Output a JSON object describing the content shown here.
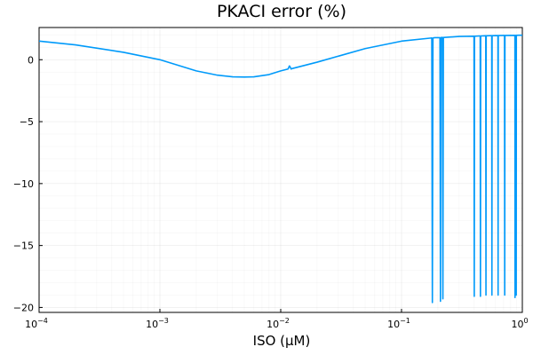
{
  "chart_data": {
    "type": "line",
    "title": "PKACI error (%)",
    "xlabel": "ISO (μM)",
    "ylabel": "",
    "xscale": "log",
    "xlim": [
      0.0001,
      1
    ],
    "ylim": [
      -20.4,
      2.6
    ],
    "grid": true,
    "legend": "none",
    "x_ticks": [
      {
        "base": "10",
        "exp": "−4",
        "value": 0.0001
      },
      {
        "base": "10",
        "exp": "−3",
        "value": 0.001
      },
      {
        "base": "10",
        "exp": "−2",
        "value": 0.01
      },
      {
        "base": "10",
        "exp": "−1",
        "value": 0.1
      },
      {
        "base": "10",
        "exp": "0",
        "value": 1
      }
    ],
    "y_ticks": [
      {
        "label": "0",
        "value": 0
      },
      {
        "label": "−5",
        "value": -5
      },
      {
        "label": "−10",
        "value": -10
      },
      {
        "label": "−15",
        "value": -15
      },
      {
        "label": "−20",
        "value": -20
      }
    ],
    "series": [
      {
        "color": "#009AFA",
        "x": [
          0.0001,
          0.0002,
          0.0005,
          0.001,
          0.002,
          0.003,
          0.004,
          0.005,
          0.006,
          0.008,
          0.01,
          0.0115,
          0.0118,
          0.012,
          0.0122,
          0.0126,
          0.02,
          0.05,
          0.1,
          0.175,
          0.178,
          0.18,
          0.182,
          0.185,
          0.19,
          0.195,
          0.2,
          0.205,
          0.208,
          0.21,
          0.212,
          0.215,
          0.218,
          0.22,
          0.222,
          0.225,
          0.3,
          0.395,
          0.398,
          0.4,
          0.402,
          0.405,
          0.44,
          0.445,
          0.448,
          0.45,
          0.452,
          0.455,
          0.495,
          0.498,
          0.5,
          0.502,
          0.505,
          0.55,
          0.555,
          0.558,
          0.56,
          0.562,
          0.565,
          0.62,
          0.625,
          0.628,
          0.63,
          0.632,
          0.635,
          0.7,
          0.708,
          0.712,
          0.715,
          0.718,
          0.722,
          0.86,
          0.865,
          0.868,
          0.87,
          0.872,
          0.875,
          0.88,
          0.885,
          0.888,
          0.89,
          0.892,
          0.895,
          0.93,
          0.95,
          1.0
        ],
        "y": [
          1.5,
          1.2,
          0.6,
          0.0,
          -0.9,
          -1.25,
          -1.38,
          -1.4,
          -1.38,
          -1.2,
          -0.9,
          -0.75,
          -0.5,
          -0.6,
          -0.75,
          -0.7,
          -0.2,
          0.9,
          1.5,
          1.75,
          1.75,
          -19.6,
          1.75,
          1.77,
          1.78,
          1.78,
          1.78,
          1.78,
          1.78,
          -19.5,
          1.78,
          1.8,
          1.8,
          -19.3,
          1.8,
          1.8,
          1.88,
          1.9,
          1.9,
          -19.1,
          1.9,
          1.9,
          1.92,
          1.92,
          1.92,
          -19.1,
          1.92,
          1.92,
          1.93,
          1.93,
          -19.0,
          1.93,
          1.93,
          1.94,
          1.94,
          1.94,
          -19.0,
          1.94,
          1.94,
          1.95,
          1.95,
          1.95,
          -19.0,
          1.95,
          1.95,
          1.96,
          1.96,
          1.96,
          -19.0,
          1.96,
          1.96,
          1.97,
          1.97,
          1.97,
          -19.2,
          1.97,
          1.97,
          1.97,
          1.97,
          1.97,
          -19.0,
          1.97,
          1.97,
          1.98,
          1.98,
          1.98
        ]
      }
    ]
  }
}
